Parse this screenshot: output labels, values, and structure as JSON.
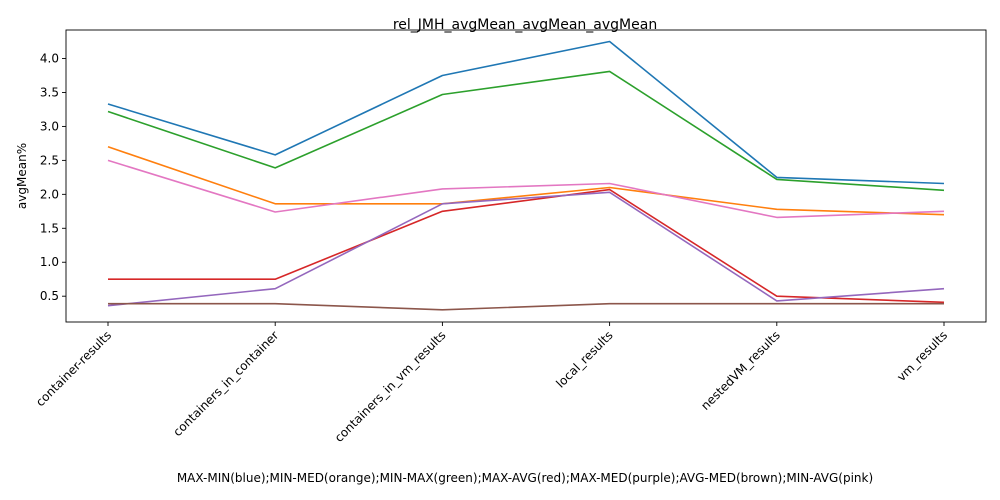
{
  "chart_data": {
    "type": "line",
    "title": "rel_JMH_avgMean_avgMean_avgMean",
    "xlabel": "MAX-MIN(blue);MIN-MED(orange);MIN-MAX(green);MAX-AVG(red);MAX-MED(purple);AVG-MED(brown);MIN-AVG(pink)",
    "ylabel": "avgMean%",
    "categories": [
      "container-results",
      "containers_in_container",
      "containers_in_vm_results",
      "local_results",
      "nestedVM_results",
      "vm_results"
    ],
    "ylim": [
      0.12,
      4.42
    ],
    "yticks": [
      "0.5",
      "1.0",
      "1.5",
      "2.0",
      "2.5",
      "3.0",
      "3.5",
      "4.0"
    ],
    "grid": false,
    "series": [
      {
        "color": "#1f77b4",
        "values": [
          3.33,
          2.58,
          3.75,
          4.25,
          2.25,
          2.16
        ]
      },
      {
        "color": "#ff7f0e",
        "values": [
          2.7,
          1.86,
          1.86,
          2.1,
          1.78,
          1.7
        ]
      },
      {
        "color": "#2ca02c",
        "values": [
          3.22,
          2.39,
          3.47,
          3.81,
          2.22,
          2.06
        ]
      },
      {
        "color": "#d62728",
        "values": [
          0.75,
          0.75,
          1.75,
          2.07,
          0.5,
          0.41
        ]
      },
      {
        "color": "#9467bd",
        "values": [
          0.36,
          0.61,
          1.86,
          2.03,
          0.43,
          0.61
        ]
      },
      {
        "color": "#8c564b",
        "values": [
          0.39,
          0.39,
          0.3,
          0.39,
          0.39,
          0.39
        ]
      },
      {
        "color": "#e377c2",
        "values": [
          2.5,
          1.74,
          2.08,
          2.16,
          1.66,
          1.75
        ]
      }
    ]
  }
}
